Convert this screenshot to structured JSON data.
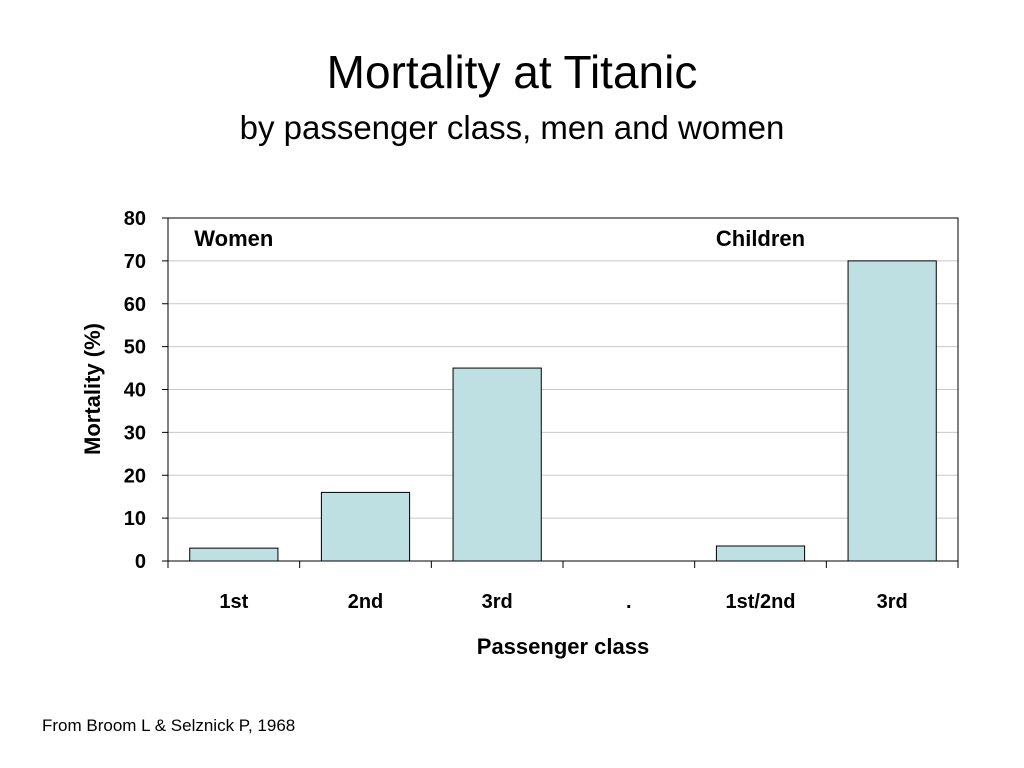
{
  "slide": {
    "title": "Mortality at Titanic",
    "subtitle": "by passenger class, men and women",
    "source": "From Broom L & Selznick P, 1968"
  },
  "chart_data": {
    "type": "bar",
    "categories": [
      "1st",
      "2nd",
      "3rd",
      ".",
      "1st/2nd",
      "3rd"
    ],
    "values": [
      3,
      16,
      45,
      null,
      3.5,
      70
    ],
    "xlabel": "Passenger class",
    "ylabel": "Mortality (%)",
    "ylim": [
      0,
      80
    ],
    "yticks": [
      0,
      10,
      20,
      30,
      40,
      50,
      60,
      70,
      80
    ],
    "annotations": [
      {
        "text": "Women",
        "category_index": 0.5
      },
      {
        "text": "Children",
        "category_index": 4.5
      }
    ],
    "grid": true,
    "bar_color": "#bfe0e3",
    "bar_edge_color": "#000000",
    "grid_color": "#c8c8c8"
  }
}
